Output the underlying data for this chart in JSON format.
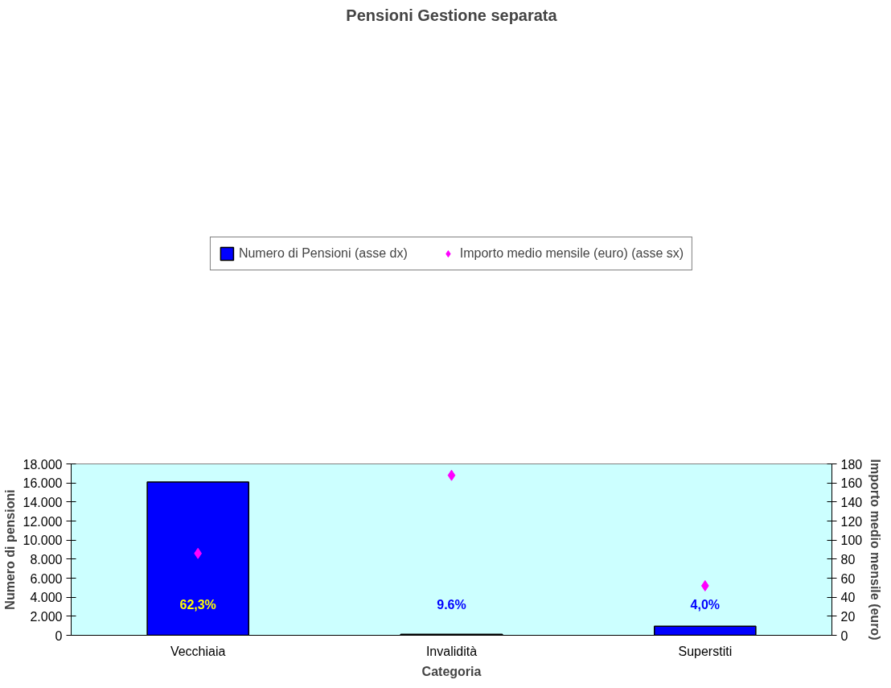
{
  "chart_data": {
    "type": "bar",
    "title": "Pensioni Gestione separata",
    "xlabel": "Categoria",
    "ylabel": "Numero di pensioni",
    "y2label": "Importo medio mensile (euro)",
    "categories": [
      "Vecchiaia",
      "Invalidità",
      "Superstiti"
    ],
    "series": [
      {
        "name": "Numero di Pensioni (asse dx)",
        "color": "#0000ff",
        "values": [
          16100,
          100,
          950
        ]
      },
      {
        "name": "Importo medio mensile (euro) (asse sx)",
        "color": "#ff00ff",
        "type": "scatter",
        "axis": "y2",
        "marker": "diamond",
        "values": [
          86,
          168,
          52
        ]
      }
    ],
    "ylim": [
      0,
      18000
    ],
    "yticks": [
      0,
      {
        "value": 2000,
        "label": "2.000"
      },
      {
        "value": 4000,
        "label": "4.000"
      },
      {
        "value": 6000,
        "label": "6.000"
      },
      {
        "value": 8000,
        "label": "8.000"
      },
      {
        "value": 10000,
        "label": "10.000"
      },
      {
        "value": 12000,
        "label": "12.000"
      },
      {
        "value": 14000,
        "label": "14.000"
      },
      {
        "value": 16000,
        "label": "16.000"
      },
      {
        "value": 18000,
        "label": "18.000"
      }
    ],
    "y2lim": [
      0,
      180
    ],
    "y2ticks": [
      0,
      20,
      40,
      60,
      80,
      100,
      120,
      140,
      160,
      180
    ],
    "annotations": [
      "62,3%",
      "9.6%",
      "4,0%"
    ],
    "grid": false,
    "legend": "top"
  }
}
